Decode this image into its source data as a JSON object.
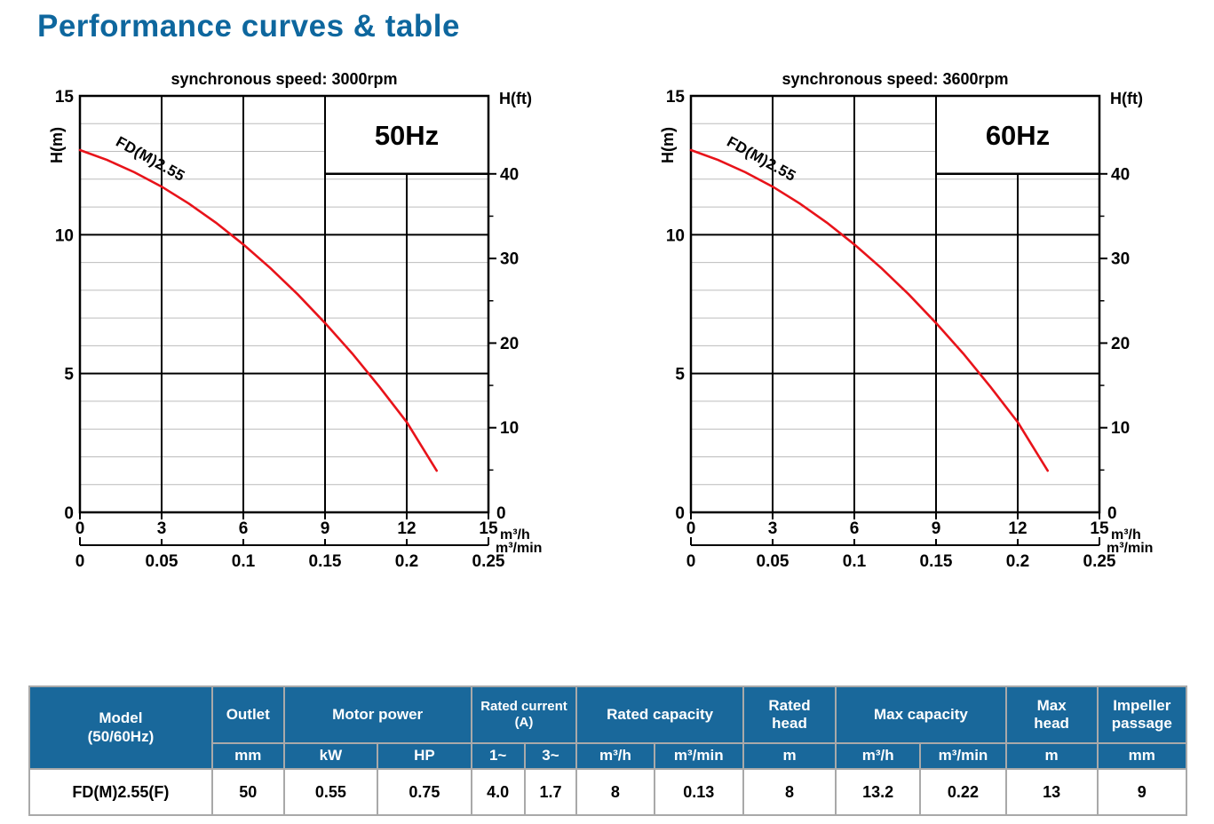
{
  "page": {
    "title": "Performance curves & table"
  },
  "colors": {
    "heading": "#0e679e",
    "curve_red": "#e8131a",
    "hz_blue": "#1565d8",
    "table_header_bg": "#19689b",
    "grid_minor": "#bcbcbc",
    "grid_major": "#000000"
  },
  "chart_data": [
    {
      "type": "line",
      "title": "synchronous speed: 3000rpm",
      "frequency_label": "50Hz",
      "x_axis": {
        "unit": "m³/h",
        "min": 0,
        "max": 15,
        "ticks": [
          0,
          3,
          6,
          9,
          12,
          15
        ]
      },
      "x_axis_secondary": {
        "unit": "m³/min",
        "min": 0,
        "max": 0.25,
        "tick_labels": [
          "0",
          "0.05",
          "0.1",
          "0.15",
          "0.2",
          "0.25"
        ]
      },
      "y_axis_left": {
        "label": "H(m)",
        "min": 0,
        "max": 15,
        "ticks": [
          0,
          5,
          10,
          15
        ],
        "minor_step_m": 1
      },
      "y_axis_right": {
        "label": "H(ft)",
        "major_ticks": [
          10,
          20,
          30,
          40
        ],
        "minor_ticks": [
          5,
          15,
          25,
          35
        ],
        "zero_label": "0",
        "meters_per_foot": 0.3048
      },
      "legend_box": {
        "x_from": 9,
        "x_to": 15,
        "bottom_at_ft": 40
      },
      "grid": {
        "minor_horizontal": true,
        "vertical_majors": [
          3,
          6,
          9,
          12
        ]
      },
      "series": [
        {
          "name": "FD(M)2.55",
          "points": [
            [
              0,
              13.05
            ],
            [
              1,
              12.69
            ],
            [
              2,
              12.25
            ],
            [
              3,
              11.73
            ],
            [
              4,
              11.12
            ],
            [
              5,
              10.43
            ],
            [
              6,
              9.65
            ],
            [
              7,
              8.79
            ],
            [
              8,
              7.85
            ],
            [
              9,
              6.82
            ],
            [
              10,
              5.72
            ],
            [
              11,
              4.52
            ],
            [
              12,
              3.25
            ],
            [
              13.1,
              1.5
            ]
          ]
        }
      ]
    },
    {
      "type": "line",
      "title": "synchronous speed: 3600rpm",
      "frequency_label": "60Hz",
      "x_axis": {
        "unit": "m³/h",
        "min": 0,
        "max": 15,
        "ticks": [
          0,
          3,
          6,
          9,
          12,
          15
        ]
      },
      "x_axis_secondary": {
        "unit": "m³/min",
        "min": 0,
        "max": 0.25,
        "tick_labels": [
          "0",
          "0.05",
          "0.1",
          "0.15",
          "0.2",
          "0.25"
        ]
      },
      "y_axis_left": {
        "label": "H(m)",
        "min": 0,
        "max": 15,
        "ticks": [
          0,
          5,
          10,
          15
        ],
        "minor_step_m": 1
      },
      "y_axis_right": {
        "label": "H(ft)",
        "major_ticks": [
          10,
          20,
          30,
          40
        ],
        "minor_ticks": [
          5,
          15,
          25,
          35
        ],
        "zero_label": "0",
        "meters_per_foot": 0.3048
      },
      "legend_box": {
        "x_from": 9,
        "x_to": 15,
        "bottom_at_ft": 40
      },
      "grid": {
        "minor_horizontal": true,
        "vertical_majors": [
          3,
          6,
          9,
          12
        ]
      },
      "series": [
        {
          "name": "FD(M)2.55",
          "points": [
            [
              0,
              13.05
            ],
            [
              1,
              12.69
            ],
            [
              2,
              12.25
            ],
            [
              3,
              11.73
            ],
            [
              4,
              11.12
            ],
            [
              5,
              10.43
            ],
            [
              6,
              9.65
            ],
            [
              7,
              8.79
            ],
            [
              8,
              7.85
            ],
            [
              9,
              6.82
            ],
            [
              10,
              5.72
            ],
            [
              11,
              4.52
            ],
            [
              12,
              3.25
            ],
            [
              13.1,
              1.5
            ]
          ]
        }
      ]
    }
  ],
  "table": {
    "header_row1": [
      {
        "label": "Model\n(50/60Hz)",
        "rowspan": 2
      },
      {
        "label": "Outlet"
      },
      {
        "label": "Motor power",
        "colspan": 2
      },
      {
        "label": "Rated current\n(A)",
        "colspan": 2,
        "small": true
      },
      {
        "label": "Rated capacity",
        "colspan": 2
      },
      {
        "label": "Rated\nhead"
      },
      {
        "label": "Max capacity",
        "colspan": 2
      },
      {
        "label": "Max\nhead"
      },
      {
        "label": "Impeller\npassage"
      }
    ],
    "header_row2": [
      "mm",
      "kW",
      "HP",
      "1~",
      "3~",
      "m³/h",
      "m³/min",
      "m",
      "m³/h",
      "m³/min",
      "m",
      "mm"
    ],
    "rows": [
      [
        "FD(M)2.55(F)",
        "50",
        "0.55",
        "0.75",
        "4.0",
        "1.7",
        "8",
        "0.13",
        "8",
        "13.2",
        "0.22",
        "13",
        "9"
      ]
    ]
  }
}
